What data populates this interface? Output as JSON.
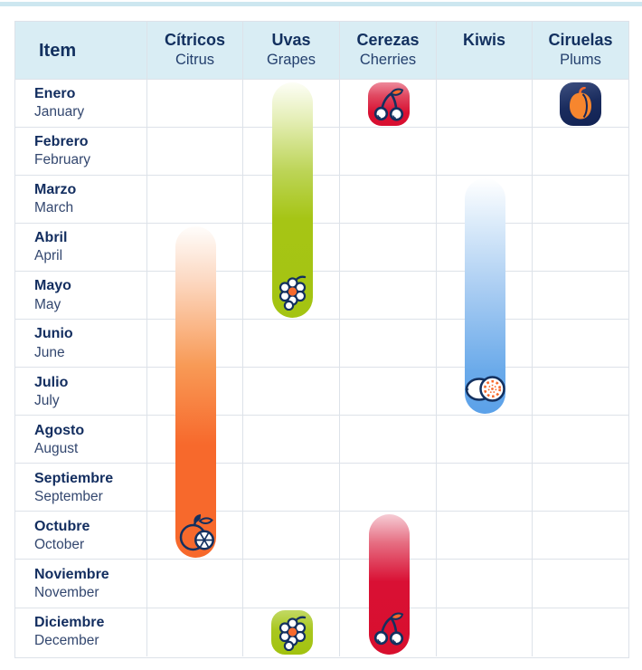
{
  "page": {
    "background": "#ffffff",
    "top_strip_color": "#cde7f0"
  },
  "header": {
    "item_label": "Item",
    "columns": [
      {
        "es": "Cítricos",
        "en": "Citrus"
      },
      {
        "es": "Uvas",
        "en": "Grapes"
      },
      {
        "es": "Cerezas",
        "en": "Cherries"
      },
      {
        "es": "Kiwis",
        "en": ""
      },
      {
        "es": "Ciruelas",
        "en": "Plums"
      }
    ]
  },
  "months": [
    {
      "es": "Enero",
      "en": "January"
    },
    {
      "es": "Febrero",
      "en": "February"
    },
    {
      "es": "Marzo",
      "en": "March"
    },
    {
      "es": "Abril",
      "en": "April"
    },
    {
      "es": "Mayo",
      "en": "May"
    },
    {
      "es": "Junio",
      "en": "June"
    },
    {
      "es": "Julio",
      "en": "July"
    },
    {
      "es": "Agosto",
      "en": "August"
    },
    {
      "es": "Septiembre",
      "en": "September"
    },
    {
      "es": "Octubre",
      "en": "October"
    },
    {
      "es": "Noviembre",
      "en": "November"
    },
    {
      "es": "Diciembre",
      "en": "December"
    }
  ],
  "chart_data": {
    "type": "table",
    "title": "",
    "description": "Seasonal availability calendar: months (rows) vs fruits (columns); colored capsules mark in-season months",
    "columns": [
      "Cítricos / Citrus",
      "Uvas / Grapes",
      "Cerezas / Cherries",
      "Kiwis",
      "Ciruelas / Plums"
    ],
    "months": [
      "Enero",
      "Febrero",
      "Marzo",
      "Abril",
      "Mayo",
      "Junio",
      "Julio",
      "Agosto",
      "Septiembre",
      "Octubre",
      "Noviembre",
      "Diciembre"
    ],
    "bars": [
      {
        "fruit": "citrus",
        "label": "Cítricos / Citrus",
        "column": 0,
        "start_index": 3,
        "end_index": 9,
        "start_month": "Abril",
        "end_month": "Octubre",
        "color": "#f7692c",
        "icons": [
          {
            "icon": "orange",
            "month_index": 9,
            "month": "Octubre"
          }
        ]
      },
      {
        "fruit": "grapes",
        "label": "Uvas / Grapes",
        "column": 1,
        "start_index": 0,
        "end_index": 4,
        "start_month": "Enero",
        "end_month": "Mayo",
        "color": "#a5c414",
        "icons": [
          {
            "icon": "grapes",
            "month_index": 4,
            "month": "Mayo"
          }
        ]
      },
      {
        "fruit": "grapes",
        "label": "Uvas / Grapes",
        "column": 1,
        "start_index": 11,
        "end_index": 11,
        "start_month": "Diciembre",
        "end_month": "Diciembre",
        "color": "#a5c414",
        "icons": [
          {
            "icon": "grapes",
            "month_index": 11,
            "month": "Diciembre"
          }
        ]
      },
      {
        "fruit": "cherries",
        "label": "Cerezas / Cherries",
        "column": 2,
        "start_index": 0,
        "end_index": 0,
        "start_month": "Enero",
        "end_month": "Enero",
        "color": "#d80f31",
        "icons": [
          {
            "icon": "cherries",
            "month_index": 0,
            "month": "Enero"
          }
        ]
      },
      {
        "fruit": "cherries",
        "label": "Cerezas / Cherries",
        "column": 2,
        "start_index": 9,
        "end_index": 11,
        "start_month": "Octubre",
        "end_month": "Diciembre",
        "color": "#d80f31",
        "icons": [
          {
            "icon": "cherries",
            "month_index": 11,
            "month": "Diciembre"
          }
        ]
      },
      {
        "fruit": "kiwi",
        "label": "Kiwis",
        "column": 3,
        "start_index": 2,
        "end_index": 6,
        "start_month": "Marzo",
        "end_month": "Julio",
        "color": "#5ba1e9",
        "icons": [
          {
            "icon": "kiwi",
            "month_index": 6,
            "month": "Julio"
          }
        ]
      },
      {
        "fruit": "plums",
        "label": "Ciruelas / Plums",
        "column": 4,
        "start_index": 0,
        "end_index": 0,
        "start_month": "Enero",
        "end_month": "Enero",
        "color": "#13265a",
        "icons": [
          {
            "icon": "plum",
            "month_index": 0,
            "month": "Enero"
          }
        ]
      }
    ]
  },
  "colors": {
    "navy_text": "#12305f",
    "secondary_text": "#33476f",
    "header_bg": "#d9edf4",
    "grid_line": "#dde2e9",
    "citrus_orange": "#f7692c",
    "grape_green": "#a5c414",
    "cherry_red": "#d80f31",
    "kiwi_blue": "#5ba1e9",
    "plum_navy": "#13265a"
  }
}
